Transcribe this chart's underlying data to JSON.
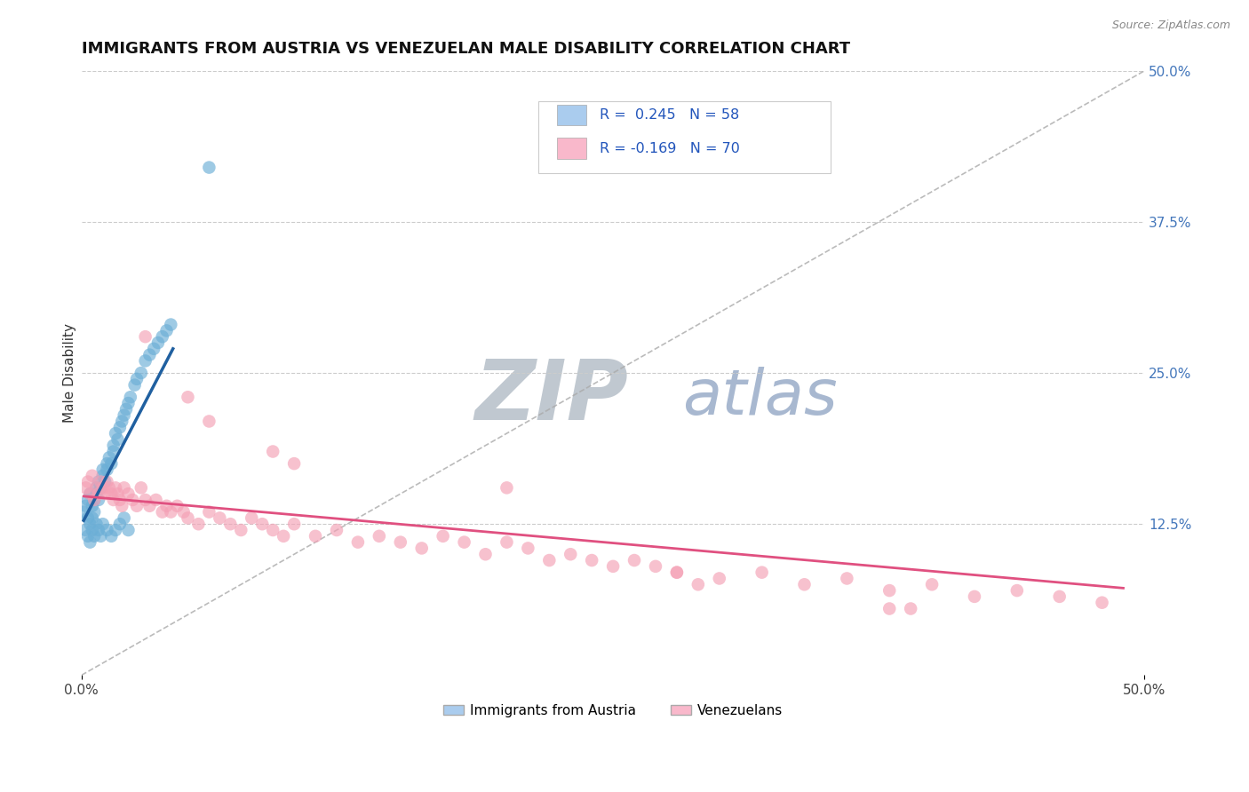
{
  "title": "IMMIGRANTS FROM AUSTRIA VS VENEZUELAN MALE DISABILITY CORRELATION CHART",
  "source_text": "Source: ZipAtlas.com",
  "ylabel": "Male Disability",
  "xlim": [
    0.0,
    0.5
  ],
  "ylim": [
    0.0,
    0.5
  ],
  "ytick_right_labels": [
    "12.5%",
    "25.0%",
    "37.5%",
    "50.0%"
  ],
  "ytick_right_vals": [
    0.125,
    0.25,
    0.375,
    0.5
  ],
  "legend_label1": "Immigrants from Austria",
  "legend_label2": "Venezuelans",
  "color_blue": "#6baed6",
  "color_blue_line": "#2060a0",
  "color_pink": "#f4a0b5",
  "color_pink_line": "#e05080",
  "color_blue_legend": "#aaccee",
  "color_pink_legend": "#f9b8cb",
  "watermark_zip_color": "#c0c8d0",
  "watermark_atlas_color": "#a8b8d0",
  "background_color": "#ffffff",
  "grid_color": "#cccccc",
  "blue_x": [
    0.001,
    0.002,
    0.003,
    0.003,
    0.004,
    0.004,
    0.005,
    0.005,
    0.006,
    0.006,
    0.007,
    0.007,
    0.008,
    0.008,
    0.009,
    0.01,
    0.01,
    0.011,
    0.012,
    0.012,
    0.013,
    0.014,
    0.015,
    0.015,
    0.016,
    0.017,
    0.018,
    0.019,
    0.02,
    0.021,
    0.022,
    0.023,
    0.025,
    0.026,
    0.028,
    0.03,
    0.032,
    0.034,
    0.036,
    0.038,
    0.04,
    0.042,
    0.002,
    0.003,
    0.004,
    0.005,
    0.006,
    0.007,
    0.008,
    0.009,
    0.01,
    0.012,
    0.014,
    0.016,
    0.018,
    0.02,
    0.022,
    0.06
  ],
  "blue_y": [
    0.135,
    0.14,
    0.13,
    0.145,
    0.125,
    0.15,
    0.13,
    0.14,
    0.145,
    0.135,
    0.15,
    0.155,
    0.145,
    0.16,
    0.155,
    0.165,
    0.17,
    0.16,
    0.17,
    0.175,
    0.18,
    0.175,
    0.185,
    0.19,
    0.2,
    0.195,
    0.205,
    0.21,
    0.215,
    0.22,
    0.225,
    0.23,
    0.24,
    0.245,
    0.25,
    0.26,
    0.265,
    0.27,
    0.275,
    0.28,
    0.285,
    0.29,
    0.12,
    0.115,
    0.11,
    0.12,
    0.115,
    0.125,
    0.12,
    0.115,
    0.125,
    0.12,
    0.115,
    0.12,
    0.125,
    0.13,
    0.12,
    0.42
  ],
  "pink_x": [
    0.002,
    0.003,
    0.004,
    0.005,
    0.006,
    0.007,
    0.008,
    0.009,
    0.01,
    0.011,
    0.012,
    0.013,
    0.014,
    0.015,
    0.016,
    0.017,
    0.018,
    0.019,
    0.02,
    0.022,
    0.024,
    0.026,
    0.028,
    0.03,
    0.032,
    0.035,
    0.038,
    0.04,
    0.042,
    0.045,
    0.048,
    0.05,
    0.055,
    0.06,
    0.065,
    0.07,
    0.075,
    0.08,
    0.085,
    0.09,
    0.095,
    0.1,
    0.11,
    0.12,
    0.13,
    0.14,
    0.15,
    0.16,
    0.17,
    0.18,
    0.19,
    0.2,
    0.21,
    0.22,
    0.23,
    0.24,
    0.25,
    0.26,
    0.27,
    0.28,
    0.3,
    0.32,
    0.34,
    0.36,
    0.38,
    0.4,
    0.42,
    0.44,
    0.46,
    0.48
  ],
  "pink_y": [
    0.155,
    0.16,
    0.15,
    0.165,
    0.145,
    0.155,
    0.15,
    0.16,
    0.155,
    0.15,
    0.16,
    0.155,
    0.15,
    0.145,
    0.155,
    0.15,
    0.145,
    0.14,
    0.155,
    0.15,
    0.145,
    0.14,
    0.155,
    0.145,
    0.14,
    0.145,
    0.135,
    0.14,
    0.135,
    0.14,
    0.135,
    0.13,
    0.125,
    0.135,
    0.13,
    0.125,
    0.12,
    0.13,
    0.125,
    0.12,
    0.115,
    0.125,
    0.115,
    0.12,
    0.11,
    0.115,
    0.11,
    0.105,
    0.115,
    0.11,
    0.1,
    0.11,
    0.105,
    0.095,
    0.1,
    0.095,
    0.09,
    0.095,
    0.09,
    0.085,
    0.08,
    0.085,
    0.075,
    0.08,
    0.07,
    0.075,
    0.065,
    0.07,
    0.065,
    0.06
  ],
  "pink_outlier_x": [
    0.03,
    0.05,
    0.06,
    0.09,
    0.1,
    0.2,
    0.28,
    0.29,
    0.38,
    0.39
  ],
  "pink_outlier_y": [
    0.28,
    0.23,
    0.21,
    0.185,
    0.175,
    0.155,
    0.085,
    0.075,
    0.055,
    0.055
  ],
  "blue_line_x": [
    0.001,
    0.043
  ],
  "blue_line_y": [
    0.128,
    0.27
  ],
  "pink_line_x": [
    0.001,
    0.49
  ],
  "pink_line_y": [
    0.148,
    0.072
  ],
  "title_fontsize": 13,
  "axis_label_fontsize": 11,
  "tick_fontsize": 11,
  "watermark_fontsize_zip": 62,
  "watermark_fontsize_atlas": 52
}
